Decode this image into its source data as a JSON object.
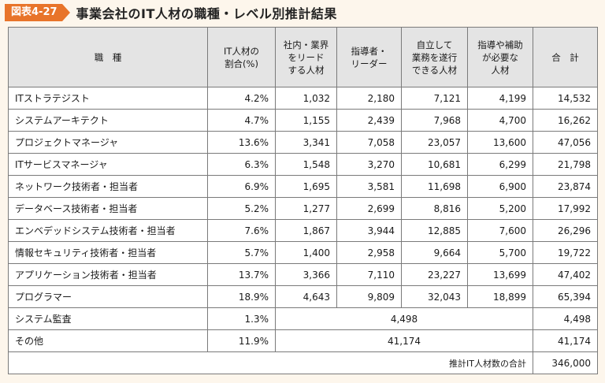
{
  "figure": {
    "label": "図表4-27",
    "title": "事業会社のIT人材の職種・レベル別推計結果"
  },
  "table": {
    "headers": {
      "role": "職　種",
      "share": "IT人材の\n割合(%)",
      "leader": "社内・業界\nをリード\nする人材",
      "director": "指導者・\nリーダー",
      "independent": "自立して\n業務を遂行\nできる人材",
      "assisted": "指導や補助\nが必要な\n人材",
      "total": "合　計"
    },
    "rows": [
      {
        "role": "ITストラテジスト",
        "share": "4.2%",
        "leader": "1,032",
        "director": "2,180",
        "independent": "7,121",
        "assisted": "4,199",
        "total": "14,532"
      },
      {
        "role": "システムアーキテクト",
        "share": "4.7%",
        "leader": "1,155",
        "director": "2,439",
        "independent": "7,968",
        "assisted": "4,700",
        "total": "16,262"
      },
      {
        "role": "プロジェクトマネージャ",
        "share": "13.6%",
        "leader": "3,341",
        "director": "7,058",
        "independent": "23,057",
        "assisted": "13,600",
        "total": "47,056"
      },
      {
        "role": "ITサービスマネージャ",
        "share": "6.3%",
        "leader": "1,548",
        "director": "3,270",
        "independent": "10,681",
        "assisted": "6,299",
        "total": "21,798"
      },
      {
        "role": "ネットワーク技術者・担当者",
        "share": "6.9%",
        "leader": "1,695",
        "director": "3,581",
        "independent": "11,698",
        "assisted": "6,900",
        "total": "23,874"
      },
      {
        "role": "データベース技術者・担当者",
        "share": "5.2%",
        "leader": "1,277",
        "director": "2,699",
        "independent": "8,816",
        "assisted": "5,200",
        "total": "17,992"
      },
      {
        "role": "エンベデッドシステム技術者・担当者",
        "share": "7.6%",
        "leader": "1,867",
        "director": "3,944",
        "independent": "12,885",
        "assisted": "7,600",
        "total": "26,296"
      },
      {
        "role": "情報セキュリティ技術者・担当者",
        "share": "5.7%",
        "leader": "1,400",
        "director": "2,958",
        "independent": "9,664",
        "assisted": "5,700",
        "total": "19,722"
      },
      {
        "role": "アプリケーション技術者・担当者",
        "share": "13.7%",
        "leader": "3,366",
        "director": "7,110",
        "independent": "23,227",
        "assisted": "13,699",
        "total": "47,402"
      },
      {
        "role": "プログラマー",
        "share": "18.9%",
        "leader": "4,643",
        "director": "9,809",
        "independent": "32,043",
        "assisted": "18,899",
        "total": "65,394"
      }
    ],
    "merged_rows": [
      {
        "role": "システム監査",
        "share": "1.3%",
        "combined": "4,498",
        "total": "4,498"
      },
      {
        "role": "その他",
        "share": "11.9%",
        "combined": "41,174",
        "total": "41,174"
      }
    ],
    "grand_total": {
      "label": "推計IT人材数の合計",
      "value": "346,000"
    }
  }
}
